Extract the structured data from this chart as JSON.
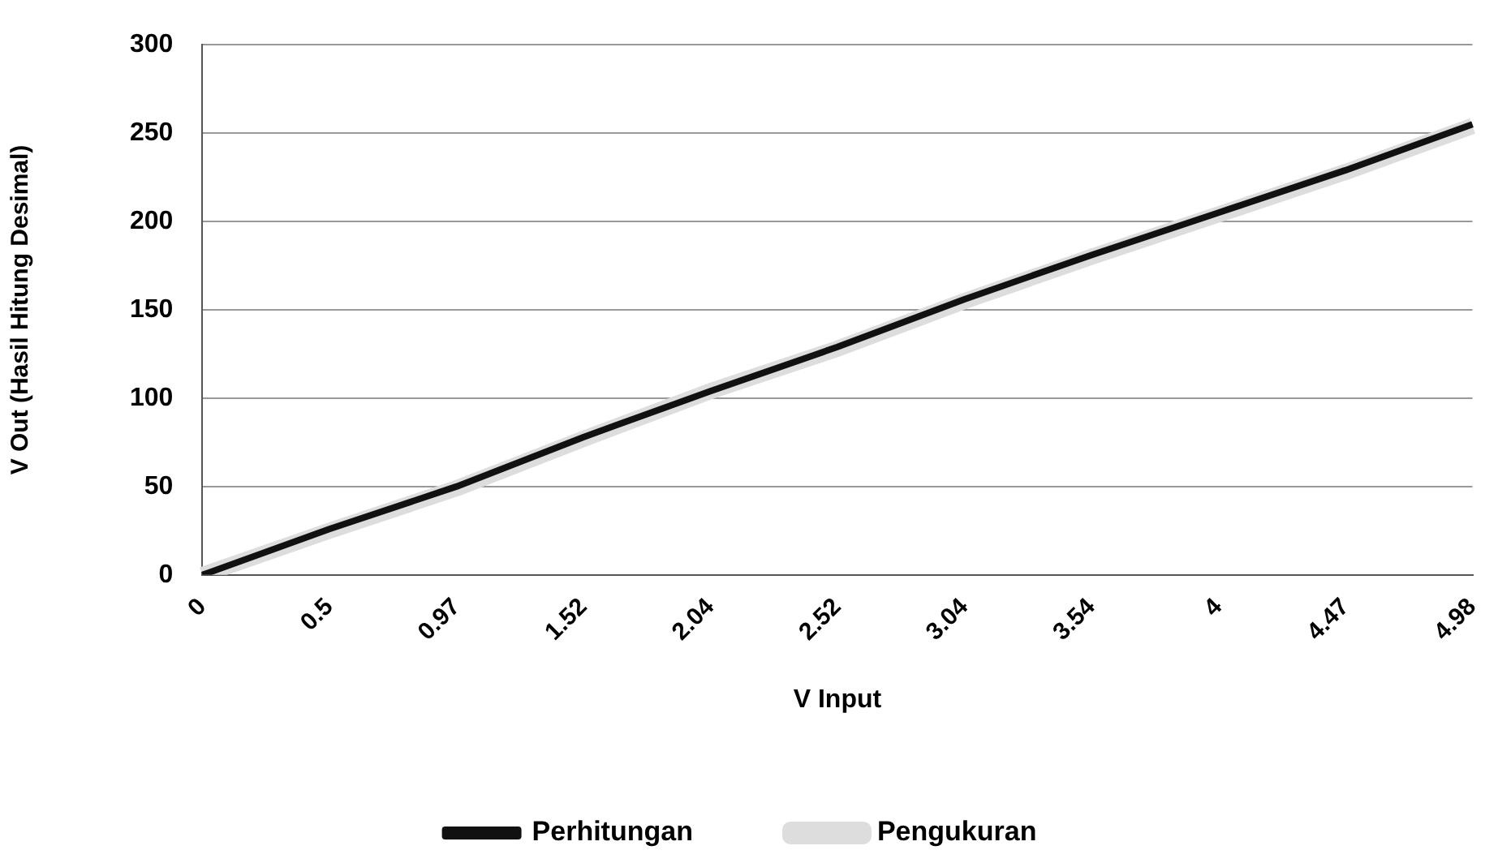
{
  "chart_data": {
    "type": "line",
    "xlabel": "V Input",
    "ylabel": "V Out (Hasil Hitung Desimal)",
    "categories": [
      "0",
      "0.5",
      "0.97",
      "1.52",
      "2.04",
      "2.52",
      "3.04",
      "3.54",
      "4",
      "4.47",
      "4.98"
    ],
    "series": [
      {
        "name": "Perhitungan",
        "color": "#111111",
        "values": [
          0,
          26,
          50,
          78,
          104,
          129,
          156,
          181,
          205,
          229,
          255
        ]
      },
      {
        "name": "Pengukuran",
        "color": "#dddddd",
        "values": [
          0,
          25,
          49,
          77,
          104,
          128,
          155,
          180,
          204,
          228,
          254
        ]
      }
    ],
    "ylim": [
      0,
      300
    ],
    "yticks": [
      0,
      50,
      100,
      150,
      200,
      250,
      300
    ],
    "grid": "y",
    "legend": "bottom",
    "marker": "none",
    "line_style": "solid"
  }
}
